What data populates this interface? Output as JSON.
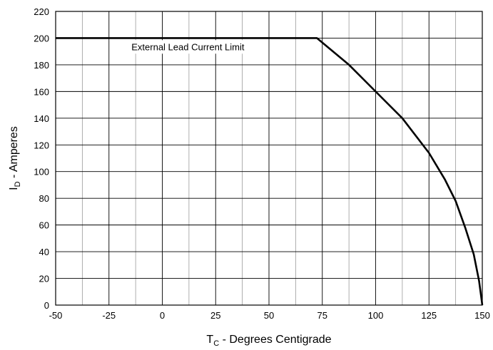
{
  "chart_data": {
    "type": "line",
    "title": "",
    "xlabel": {
      "main": "T",
      "sub": "C",
      "rest": " - Degrees Centigrade"
    },
    "ylabel": {
      "main": "I",
      "sub": "D",
      "rest": " - Amperes"
    },
    "xlim": [
      -50,
      150
    ],
    "ylim": [
      0,
      220
    ],
    "x_ticks": [
      -50,
      -25,
      0,
      25,
      50,
      75,
      100,
      125,
      150
    ],
    "y_ticks": [
      0,
      20,
      40,
      60,
      80,
      100,
      120,
      140,
      160,
      180,
      200,
      220
    ],
    "x_minor_step": 12.5,
    "grid": true,
    "series": [
      {
        "color": "#000000",
        "x": [
          -50,
          72.5,
          87.5,
          100,
          112.5,
          125,
          132.5,
          137.5,
          142,
          146,
          148.5,
          150
        ],
        "y": [
          200,
          200,
          180,
          160,
          140,
          114,
          94,
          78,
          58,
          38,
          18,
          0
        ]
      }
    ],
    "annotations": [
      {
        "text": "External Lead Current Limit",
        "x": 12,
        "y": 191
      }
    ]
  }
}
